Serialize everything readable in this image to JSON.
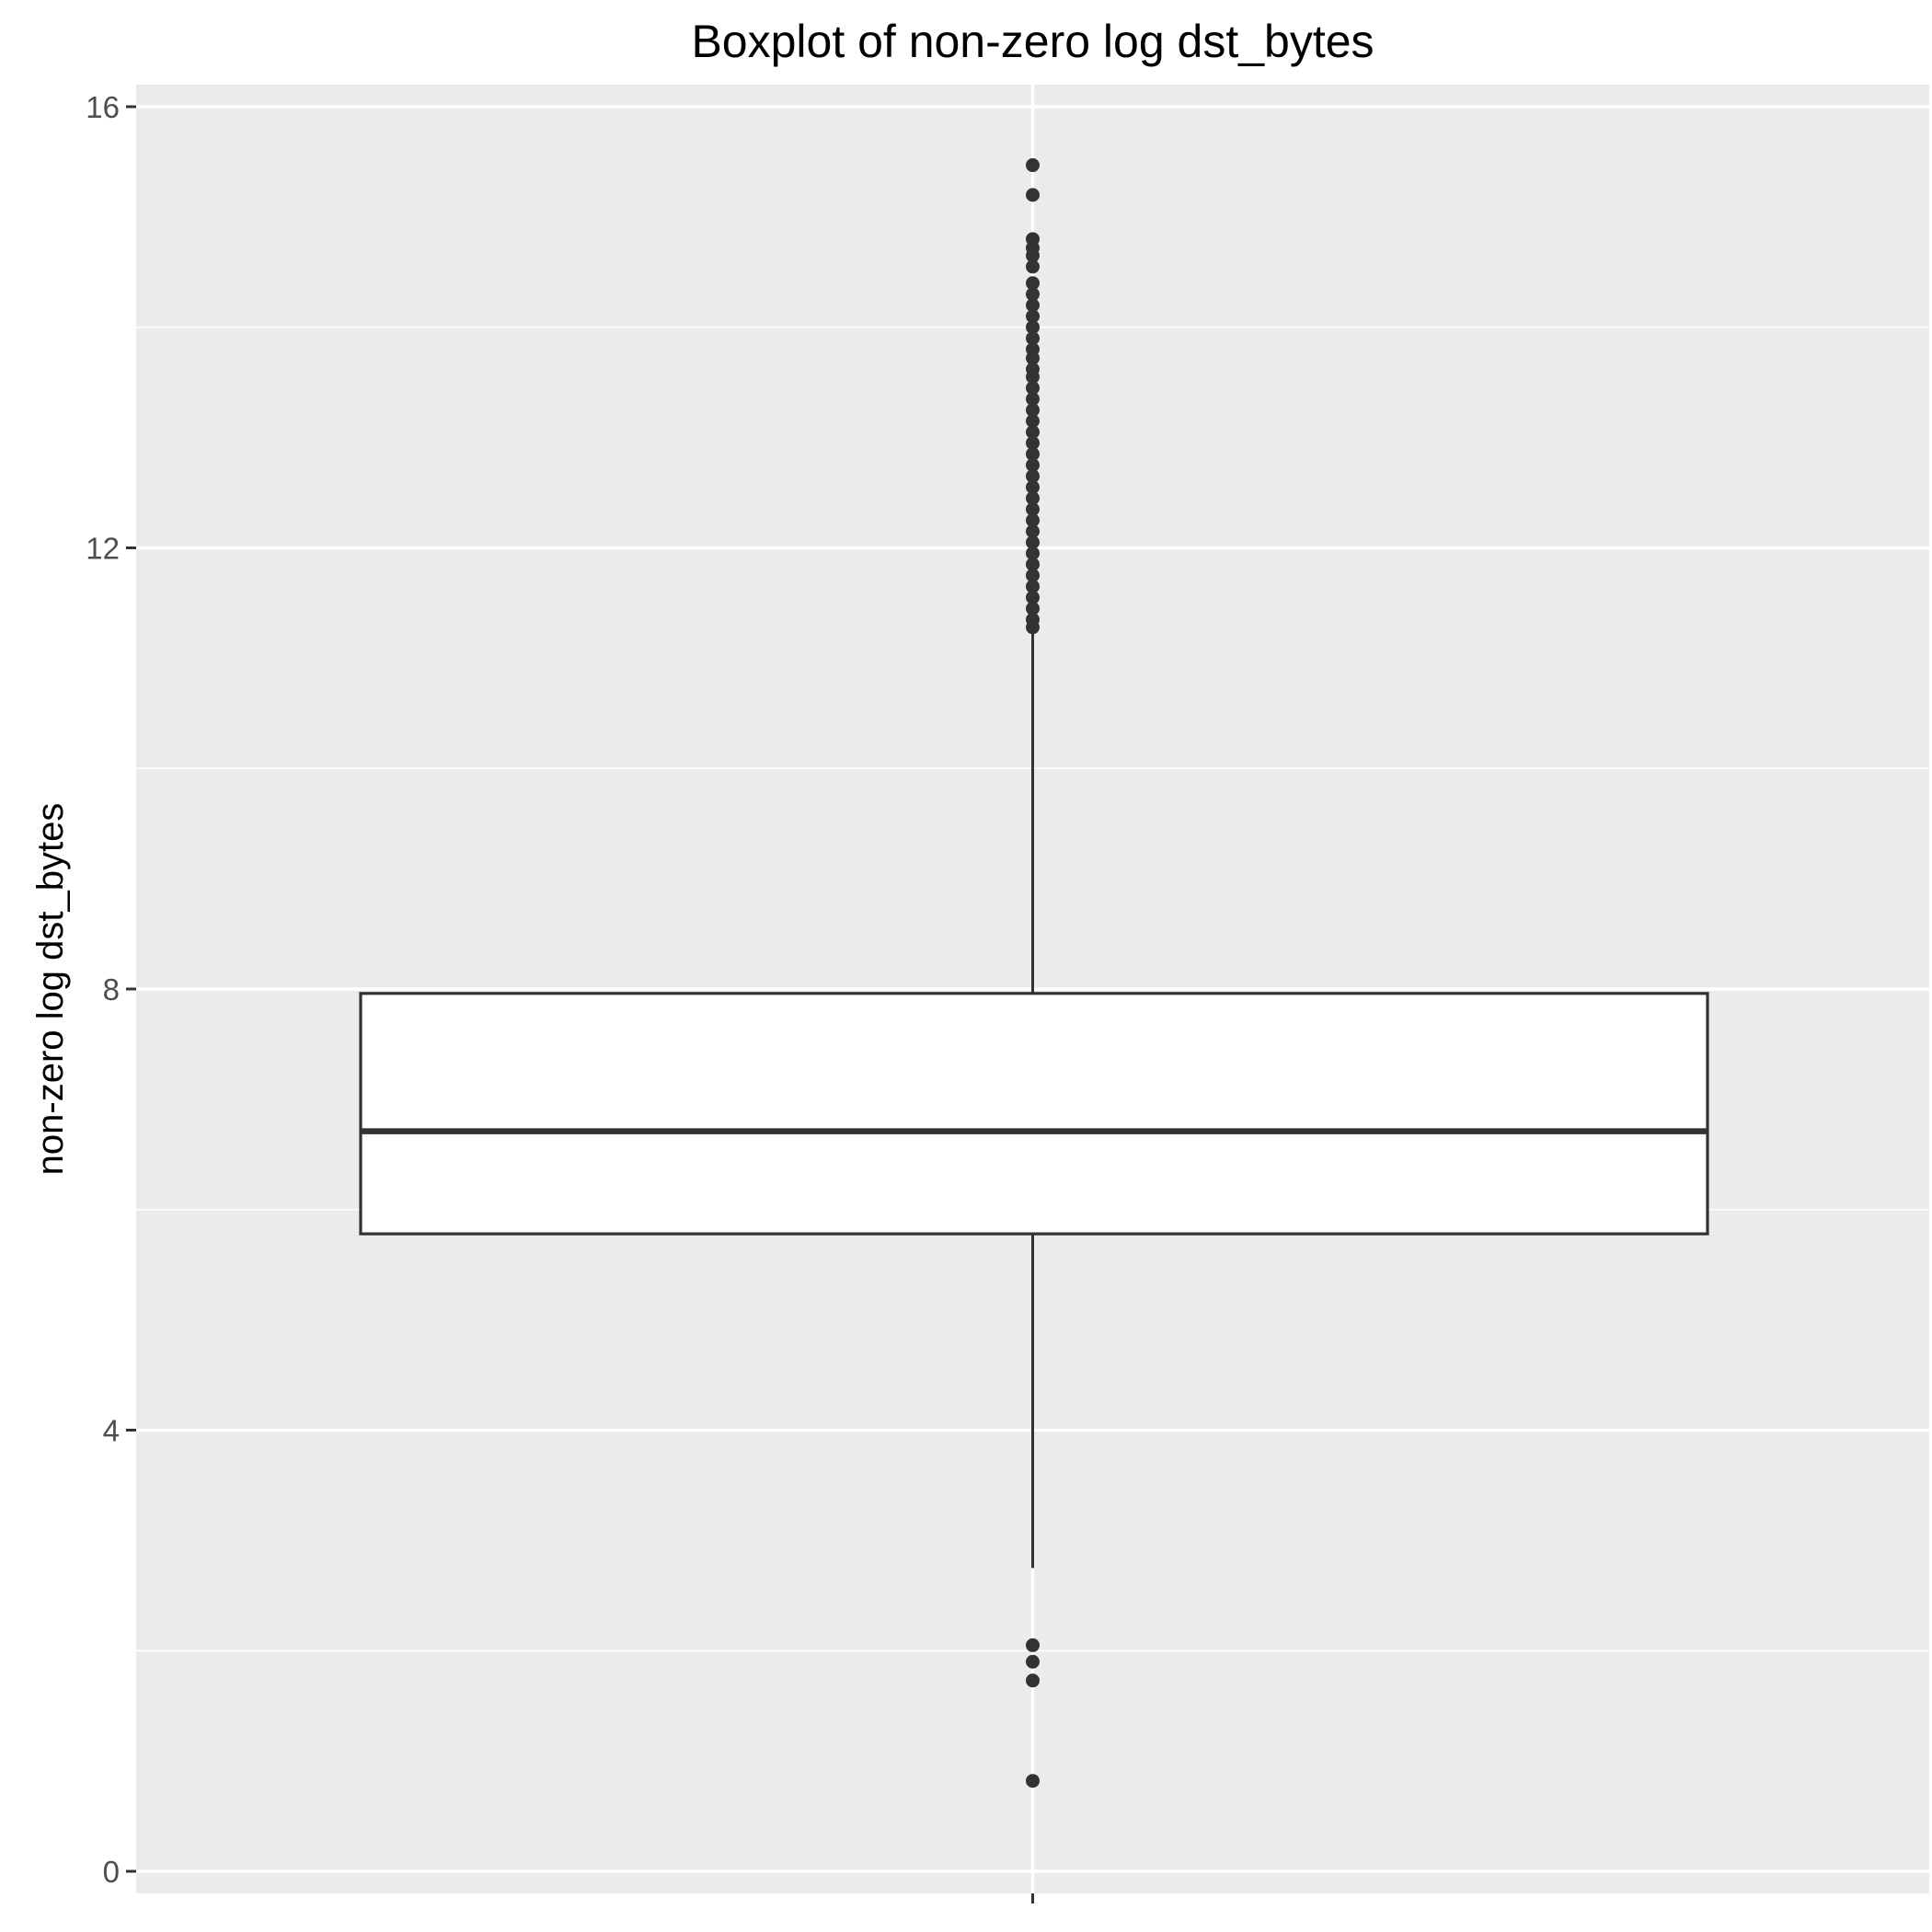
{
  "chart_data": {
    "type": "boxplot",
    "title": "Boxplot of non-zero log dst_bytes",
    "xlabel": "",
    "ylabel": "non-zero log dst_bytes",
    "ylim": [
      -0.2,
      16.2
    ],
    "y_ticks": [
      0,
      4,
      8,
      12,
      16
    ],
    "y_tick_labels": [
      "0",
      "4",
      "8",
      "12",
      "16"
    ],
    "y_minor_ticks": [
      2,
      6,
      10,
      14
    ],
    "grid": true,
    "legend": "none",
    "box": {
      "lower_whisker": 2.75,
      "q1": 5.78,
      "median": 6.71,
      "q3": 7.96,
      "upper_whisker": 11.22
    },
    "outliers": [
      15.47,
      15.2,
      14.8,
      14.72,
      14.65,
      14.55,
      14.4,
      14.3,
      14.2,
      14.1,
      14.0,
      13.9,
      13.8,
      13.72,
      13.62,
      13.55,
      13.45,
      13.35,
      13.25,
      13.15,
      13.05,
      12.95,
      12.85,
      12.75,
      12.65,
      12.55,
      12.45,
      12.35,
      12.25,
      12.15,
      12.05,
      11.95,
      11.85,
      11.75,
      11.65,
      11.55,
      11.45,
      11.35,
      11.28,
      2.05,
      1.9,
      1.73,
      0.82
    ],
    "colors": {
      "panel_background": "#ebebeb",
      "grid": "#ffffff",
      "box_fill": "#ffffff",
      "box_stroke": "#333333",
      "outlier": "#333333"
    }
  }
}
